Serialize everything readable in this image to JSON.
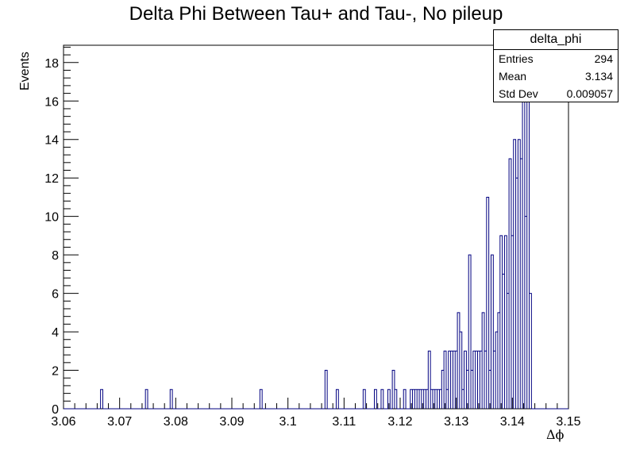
{
  "chart_data": {
    "type": "bar",
    "title": "Delta Phi Between Tau+ and Tau-, No pileup",
    "xlabel": "Δϕ",
    "ylabel": "Events",
    "xlim": [
      3.06,
      3.15
    ],
    "ylim": [
      0,
      18.9
    ],
    "x_ticks": [
      "3.06",
      "3.07",
      "3.08",
      "3.09",
      "3.1",
      "3.11",
      "3.12",
      "3.13",
      "3.14",
      "3.15"
    ],
    "y_ticks": [
      "0",
      "2",
      "4",
      "6",
      "8",
      "10",
      "12",
      "14",
      "16",
      "18"
    ],
    "bin_width": 0.0004,
    "histogram_color": "#000080",
    "bins": [
      {
        "x": 3.0666,
        "y": 1
      },
      {
        "x": 3.0746,
        "y": 1
      },
      {
        "x": 3.079,
        "y": 1
      },
      {
        "x": 3.095,
        "y": 1
      },
      {
        "x": 3.1066,
        "y": 2
      },
      {
        "x": 3.1086,
        "y": 1
      },
      {
        "x": 3.1134,
        "y": 1
      },
      {
        "x": 3.1154,
        "y": 1
      },
      {
        "x": 3.1166,
        "y": 1
      },
      {
        "x": 3.1178,
        "y": 1
      },
      {
        "x": 3.1186,
        "y": 2
      },
      {
        "x": 3.119,
        "y": 1
      },
      {
        "x": 3.1206,
        "y": 1
      },
      {
        "x": 3.1218,
        "y": 1
      },
      {
        "x": 3.1222,
        "y": 1
      },
      {
        "x": 3.1226,
        "y": 1
      },
      {
        "x": 3.123,
        "y": 1
      },
      {
        "x": 3.1234,
        "y": 1
      },
      {
        "x": 3.1238,
        "y": 1
      },
      {
        "x": 3.1242,
        "y": 1
      },
      {
        "x": 3.1246,
        "y": 1
      },
      {
        "x": 3.125,
        "y": 3
      },
      {
        "x": 3.1254,
        "y": 1
      },
      {
        "x": 3.1258,
        "y": 1
      },
      {
        "x": 3.1262,
        "y": 1
      },
      {
        "x": 3.1266,
        "y": 1
      },
      {
        "x": 3.127,
        "y": 1
      },
      {
        "x": 3.1274,
        "y": 2
      },
      {
        "x": 3.1278,
        "y": 3
      },
      {
        "x": 3.1282,
        "y": 1
      },
      {
        "x": 3.1286,
        "y": 3
      },
      {
        "x": 3.129,
        "y": 3
      },
      {
        "x": 3.1294,
        "y": 3
      },
      {
        "x": 3.1298,
        "y": 3
      },
      {
        "x": 3.1302,
        "y": 5
      },
      {
        "x": 3.1306,
        "y": 4
      },
      {
        "x": 3.131,
        "y": 1
      },
      {
        "x": 3.1314,
        "y": 3
      },
      {
        "x": 3.1318,
        "y": 2
      },
      {
        "x": 3.1322,
        "y": 8
      },
      {
        "x": 3.1326,
        "y": 2
      },
      {
        "x": 3.133,
        "y": 3
      },
      {
        "x": 3.1334,
        "y": 3
      },
      {
        "x": 3.1338,
        "y": 3
      },
      {
        "x": 3.1342,
        "y": 3
      },
      {
        "x": 3.1346,
        "y": 5
      },
      {
        "x": 3.135,
        "y": 3
      },
      {
        "x": 3.1354,
        "y": 11
      },
      {
        "x": 3.1358,
        "y": 2
      },
      {
        "x": 3.1362,
        "y": 8
      },
      {
        "x": 3.1366,
        "y": 3
      },
      {
        "x": 3.137,
        "y": 4
      },
      {
        "x": 3.1374,
        "y": 5
      },
      {
        "x": 3.1378,
        "y": 9
      },
      {
        "x": 3.1382,
        "y": 7
      },
      {
        "x": 3.1386,
        "y": 9
      },
      {
        "x": 3.139,
        "y": 6
      },
      {
        "x": 3.1394,
        "y": 13
      },
      {
        "x": 3.1398,
        "y": 9
      },
      {
        "x": 3.1402,
        "y": 14
      },
      {
        "x": 3.1406,
        "y": 12
      },
      {
        "x": 3.141,
        "y": 14
      },
      {
        "x": 3.1414,
        "y": 13
      },
      {
        "x": 3.1418,
        "y": 16
      },
      {
        "x": 3.1422,
        "y": 10
      },
      {
        "x": 3.1426,
        "y": 17
      },
      {
        "x": 3.143,
        "y": 6
      }
    ],
    "legend_placement": "top-right",
    "grid": false
  },
  "stats_box": {
    "title": "delta_phi",
    "rows": [
      {
        "label": "Entries",
        "value": "294"
      },
      {
        "label": "Mean",
        "value": "3.134"
      },
      {
        "label": "Std Dev",
        "value": "0.009057"
      }
    ]
  }
}
